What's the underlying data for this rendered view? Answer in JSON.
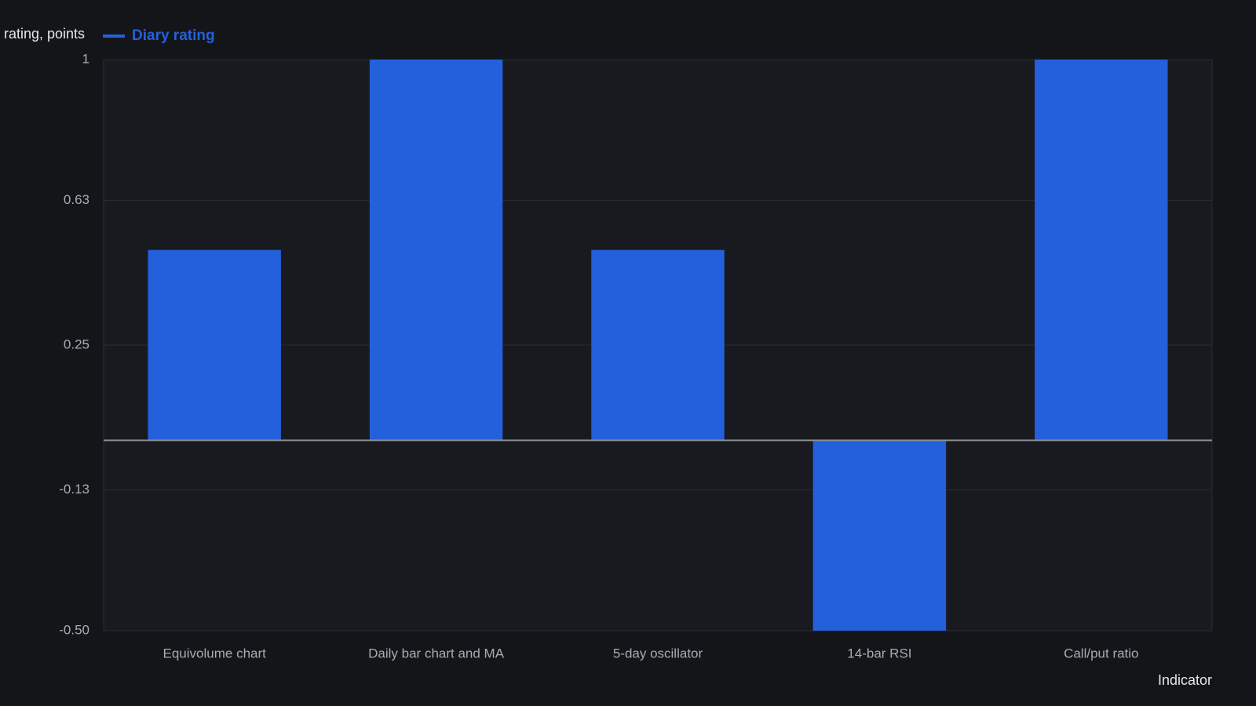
{
  "chart_data": {
    "type": "bar",
    "y_label": "rating, points",
    "x_label": "Indicator",
    "categories": [
      "Equivolume chart",
      "Daily bar chart and MA",
      "5-day oscillator",
      "14-bar RSI",
      "Call/put ratio"
    ],
    "series": [
      {
        "name": "Diary rating",
        "color": "#2560dc",
        "values": [
          0.5,
          1,
          0.5,
          -0.5,
          1
        ]
      }
    ],
    "ylim": [
      -0.5,
      1
    ],
    "yticks": [
      {
        "value": -0.5,
        "label": "-0.50"
      },
      -0.13,
      0.25,
      0.63,
      1
    ],
    "grid": true
  }
}
